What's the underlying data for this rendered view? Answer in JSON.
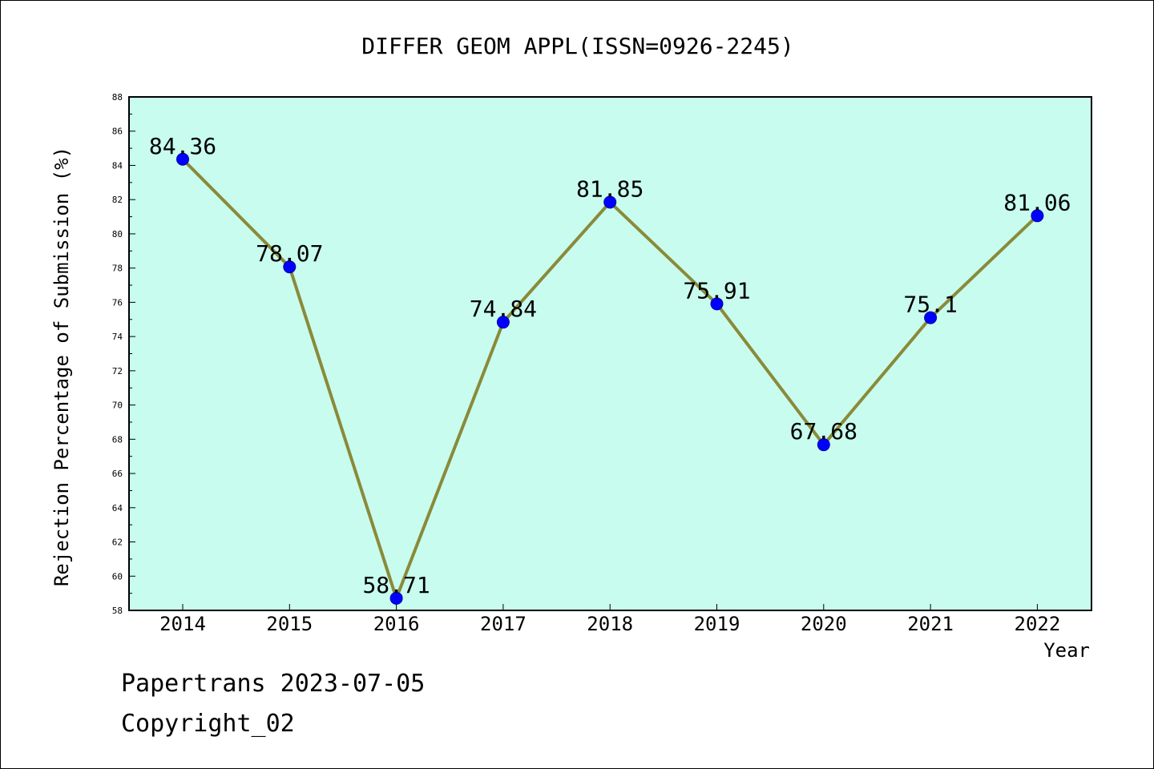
{
  "chart_data": {
    "type": "line",
    "title": "DIFFER GEOM APPL(ISSN=0926-2245)",
    "xlabel": "Year",
    "ylabel": "Rejection Percentage of Submission (%)",
    "categories": [
      "2014",
      "2015",
      "2016",
      "2017",
      "2018",
      "2019",
      "2020",
      "2021",
      "2022"
    ],
    "values": [
      84.36,
      78.07,
      58.71,
      74.84,
      81.85,
      75.91,
      67.68,
      75.1,
      81.06
    ],
    "value_labels": [
      "84.36",
      "78.07",
      "58.71",
      "74.84",
      "81.85",
      "75.91",
      "67.68",
      "75.1",
      "81.06"
    ],
    "ylim": [
      58,
      88
    ],
    "yticks": [
      "58",
      "60",
      "62",
      "64",
      "66",
      "68",
      "70",
      "72",
      "74",
      "76",
      "78",
      "80",
      "82",
      "84",
      "86",
      "88"
    ],
    "grid": false,
    "plot_background": "#c8fcee",
    "line_color": "#8a8a3a",
    "marker_color": "#0000ff"
  },
  "footer": {
    "line1": "Papertrans 2023-07-05",
    "line2": "Copyright_02"
  }
}
